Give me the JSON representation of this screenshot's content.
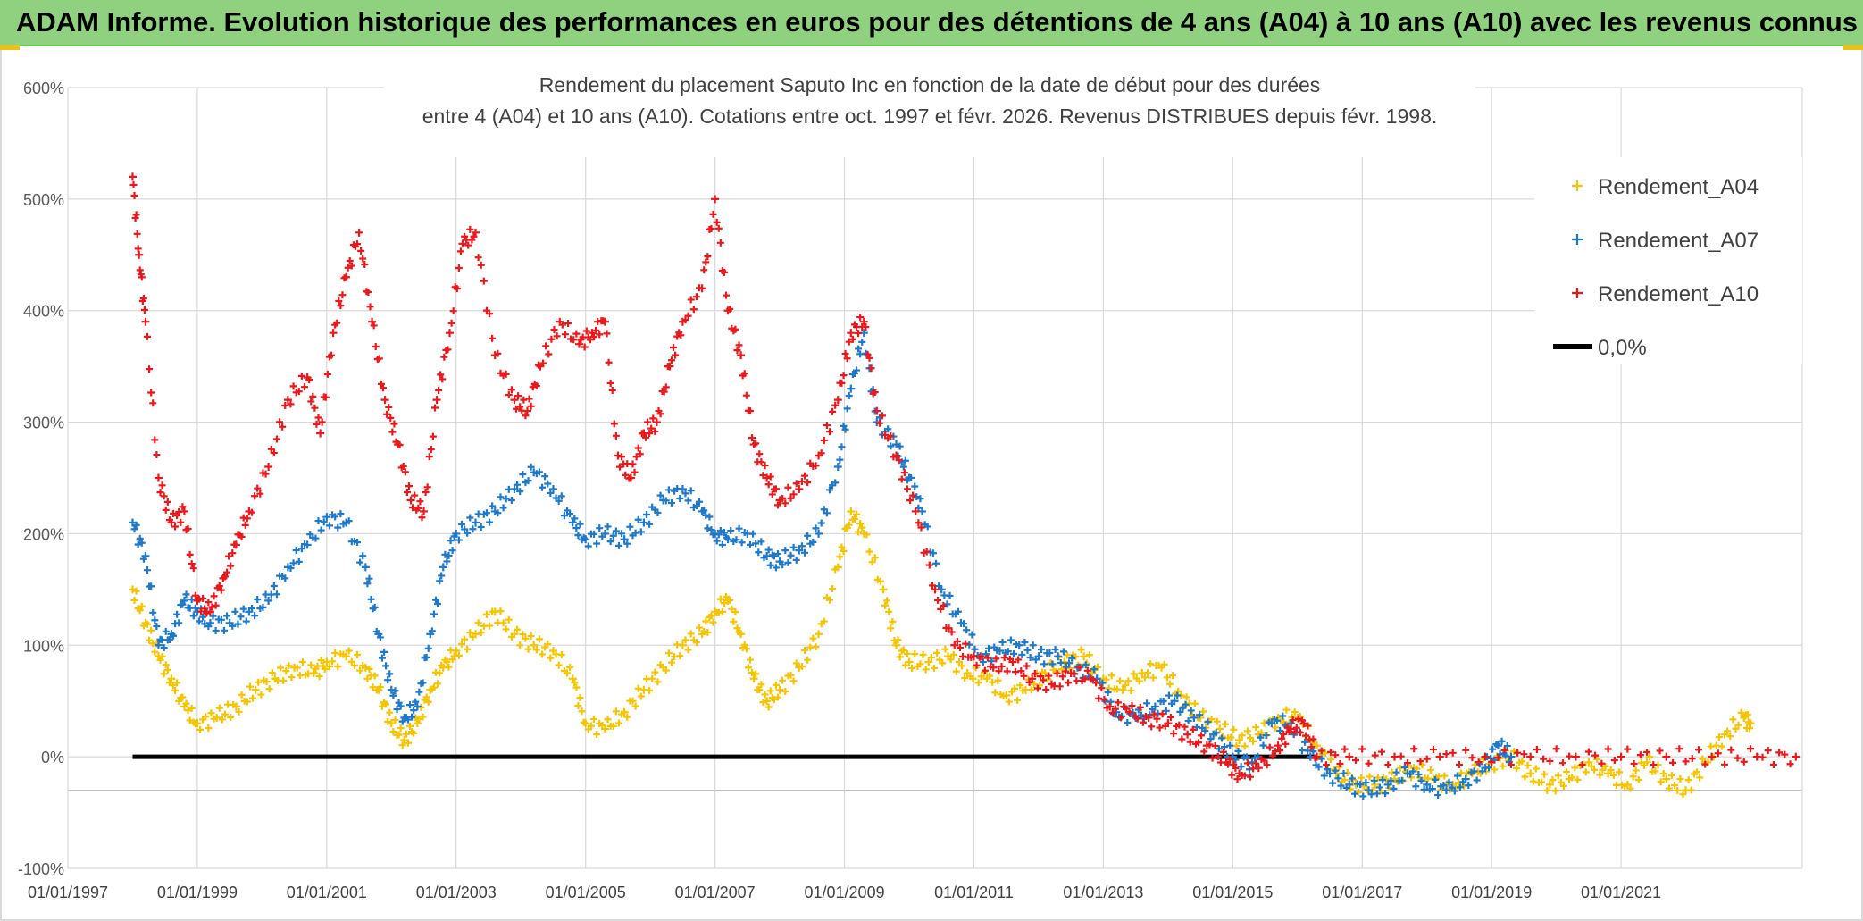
{
  "banner": {
    "title": "ADAM Informe. Evolution historique des performances en euros pour des détentions de 4 ans (A04) à 10 ans (A10) avec les revenus connus distribués"
  },
  "chart_data": {
    "type": "scatter",
    "title_line1": "Rendement du placement Saputo Inc en fonction de la date de début pour des durées",
    "title_line2": "entre 4 (A04) et 10 ans (A10). Cotations entre oct. 1997 et févr. 2026. Revenus DISTRIBUES depuis févr. 1998.",
    "x_range": [
      1997.0,
      2023.8
    ],
    "ylim": [
      -100,
      600
    ],
    "y_ticks": [
      -100,
      0,
      100,
      200,
      300,
      400,
      500,
      600
    ],
    "y_tick_labels": [
      "-100%",
      "0%",
      "100%",
      "200%",
      "300%",
      "400%",
      "500%",
      "600%"
    ],
    "x_ticks": [
      1997,
      1999,
      2001,
      2003,
      2005,
      2007,
      2009,
      2011,
      2013,
      2015,
      2017,
      2019,
      2021
    ],
    "x_tick_labels": [
      "01/01/1997",
      "01/01/1999",
      "01/01/2001",
      "01/01/2003",
      "01/01/2005",
      "01/01/2007",
      "01/01/2009",
      "01/01/2011",
      "01/01/2013",
      "01/01/2015",
      "01/01/2017",
      "01/01/2019",
      "01/01/2021"
    ],
    "grid": true,
    "legend_position": "top-right",
    "marker": "+",
    "series": [
      {
        "name": "Rendement_A04",
        "color": "#f5c400",
        "points": [
          [
            1998.0,
            150
          ],
          [
            1998.2,
            120
          ],
          [
            1998.4,
            90
          ],
          [
            1998.6,
            70
          ],
          [
            1998.8,
            45
          ],
          [
            1999.0,
            30
          ],
          [
            1999.3,
            35
          ],
          [
            1999.6,
            45
          ],
          [
            1999.9,
            60
          ],
          [
            2000.2,
            70
          ],
          [
            2000.5,
            80
          ],
          [
            2000.8,
            75
          ],
          [
            2001.0,
            85
          ],
          [
            2001.3,
            90
          ],
          [
            2001.6,
            80
          ],
          [
            2001.8,
            60
          ],
          [
            2002.0,
            30
          ],
          [
            2002.2,
            15
          ],
          [
            2002.4,
            30
          ],
          [
            2002.6,
            60
          ],
          [
            2002.8,
            80
          ],
          [
            2003.0,
            95
          ],
          [
            2003.3,
            110
          ],
          [
            2003.6,
            130
          ],
          [
            2003.9,
            110
          ],
          [
            2004.2,
            100
          ],
          [
            2004.5,
            95
          ],
          [
            2004.8,
            70
          ],
          [
            2005.0,
            30
          ],
          [
            2005.3,
            25
          ],
          [
            2005.6,
            40
          ],
          [
            2005.9,
            60
          ],
          [
            2006.2,
            80
          ],
          [
            2006.5,
            100
          ],
          [
            2006.8,
            110
          ],
          [
            2007.0,
            130
          ],
          [
            2007.2,
            140
          ],
          [
            2007.4,
            110
          ],
          [
            2007.6,
            70
          ],
          [
            2007.8,
            50
          ],
          [
            2008.0,
            60
          ],
          [
            2008.3,
            80
          ],
          [
            2008.6,
            110
          ],
          [
            2008.9,
            170
          ],
          [
            2009.1,
            220
          ],
          [
            2009.3,
            200
          ],
          [
            2009.6,
            150
          ],
          [
            2009.8,
            100
          ],
          [
            2010.0,
            85
          ],
          [
            2010.3,
            85
          ],
          [
            2010.6,
            90
          ],
          [
            2010.9,
            75
          ],
          [
            2011.2,
            70
          ],
          [
            2011.5,
            55
          ],
          [
            2011.8,
            60
          ],
          [
            2012.1,
            75
          ],
          [
            2012.4,
            85
          ],
          [
            2012.7,
            90
          ],
          [
            2013.0,
            70
          ],
          [
            2013.3,
            60
          ],
          [
            2013.6,
            75
          ],
          [
            2013.9,
            80
          ],
          [
            2014.2,
            55
          ],
          [
            2014.5,
            35
          ],
          [
            2014.8,
            25
          ],
          [
            2015.1,
            15
          ],
          [
            2015.4,
            20
          ],
          [
            2015.7,
            35
          ],
          [
            2016.0,
            35
          ],
          [
            2016.3,
            10
          ],
          [
            2016.6,
            -15
          ],
          [
            2016.9,
            -25
          ],
          [
            2017.2,
            -25
          ],
          [
            2017.5,
            -20
          ],
          [
            2017.8,
            -10
          ],
          [
            2018.1,
            -20
          ],
          [
            2018.4,
            -25
          ],
          [
            2018.7,
            -15
          ],
          [
            2019.0,
            -5
          ],
          [
            2019.3,
            0
          ],
          [
            2019.6,
            -15
          ],
          [
            2019.9,
            -25
          ],
          [
            2020.2,
            -20
          ],
          [
            2020.5,
            -5
          ],
          [
            2020.8,
            -15
          ],
          [
            2021.1,
            -25
          ],
          [
            2021.4,
            -5
          ],
          [
            2021.7,
            -20
          ],
          [
            2022.0,
            -30
          ],
          [
            2022.3,
            -5
          ],
          [
            2022.6,
            20
          ],
          [
            2022.9,
            35
          ],
          [
            2023.0,
            30
          ]
        ]
      },
      {
        "name": "Rendement_A07",
        "color": "#1f78c8",
        "points": [
          [
            1998.0,
            210
          ],
          [
            1998.2,
            180
          ],
          [
            1998.4,
            100
          ],
          [
            1998.6,
            110
          ],
          [
            1998.8,
            140
          ],
          [
            1999.0,
            130
          ],
          [
            1999.2,
            120
          ],
          [
            1999.5,
            120
          ],
          [
            1999.8,
            130
          ],
          [
            2000.1,
            140
          ],
          [
            2000.4,
            170
          ],
          [
            2000.7,
            190
          ],
          [
            2001.0,
            215
          ],
          [
            2001.3,
            210
          ],
          [
            2001.6,
            170
          ],
          [
            2001.8,
            110
          ],
          [
            2002.0,
            60
          ],
          [
            2002.2,
            35
          ],
          [
            2002.4,
            45
          ],
          [
            2002.6,
            110
          ],
          [
            2002.8,
            170
          ],
          [
            2003.0,
            200
          ],
          [
            2003.3,
            210
          ],
          [
            2003.6,
            220
          ],
          [
            2003.9,
            240
          ],
          [
            2004.2,
            255
          ],
          [
            2004.5,
            240
          ],
          [
            2004.8,
            210
          ],
          [
            2005.0,
            195
          ],
          [
            2005.3,
            200
          ],
          [
            2005.6,
            195
          ],
          [
            2005.9,
            210
          ],
          [
            2006.2,
            230
          ],
          [
            2006.5,
            240
          ],
          [
            2006.8,
            220
          ],
          [
            2007.0,
            200
          ],
          [
            2007.2,
            195
          ],
          [
            2007.5,
            200
          ],
          [
            2007.8,
            180
          ],
          [
            2008.0,
            175
          ],
          [
            2008.3,
            185
          ],
          [
            2008.6,
            200
          ],
          [
            2008.9,
            260
          ],
          [
            2009.1,
            330
          ],
          [
            2009.3,
            380
          ],
          [
            2009.5,
            300
          ],
          [
            2009.8,
            280
          ],
          [
            2010.0,
            250
          ],
          [
            2010.2,
            220
          ],
          [
            2010.5,
            150
          ],
          [
            2010.8,
            120
          ],
          [
            2011.1,
            90
          ],
          [
            2011.4,
            95
          ],
          [
            2011.7,
            100
          ],
          [
            2012.0,
            90
          ],
          [
            2012.3,
            90
          ],
          [
            2012.6,
            80
          ],
          [
            2012.9,
            70
          ],
          [
            2013.2,
            40
          ],
          [
            2013.5,
            35
          ],
          [
            2013.8,
            45
          ],
          [
            2014.1,
            50
          ],
          [
            2014.4,
            35
          ],
          [
            2014.7,
            20
          ],
          [
            2015.0,
            0
          ],
          [
            2015.3,
            -5
          ],
          [
            2015.6,
            30
          ],
          [
            2015.9,
            30
          ],
          [
            2016.2,
            0
          ],
          [
            2016.5,
            -15
          ],
          [
            2016.8,
            -25
          ],
          [
            2017.1,
            -30
          ],
          [
            2017.4,
            -25
          ],
          [
            2017.7,
            -15
          ],
          [
            2018.0,
            -25
          ],
          [
            2018.3,
            -30
          ],
          [
            2018.6,
            -20
          ],
          [
            2018.9,
            -10
          ],
          [
            2019.1,
            10
          ],
          [
            2019.3,
            0
          ]
        ]
      },
      {
        "name": "Rendement_A10",
        "color": "#e8191d",
        "points": [
          [
            1998.0,
            520
          ],
          [
            1998.1,
            450
          ],
          [
            1998.2,
            390
          ],
          [
            1998.4,
            250
          ],
          [
            1998.6,
            210
          ],
          [
            1998.8,
            220
          ],
          [
            1999.0,
            140
          ],
          [
            1999.2,
            130
          ],
          [
            1999.4,
            160
          ],
          [
            1999.6,
            190
          ],
          [
            1999.8,
            220
          ],
          [
            2000.1,
            260
          ],
          [
            2000.4,
            320
          ],
          [
            2000.7,
            340
          ],
          [
            2000.9,
            290
          ],
          [
            2001.1,
            380
          ],
          [
            2001.3,
            430
          ],
          [
            2001.5,
            470
          ],
          [
            2001.7,
            390
          ],
          [
            2001.9,
            320
          ],
          [
            2002.1,
            280
          ],
          [
            2002.3,
            230
          ],
          [
            2002.5,
            220
          ],
          [
            2002.7,
            320
          ],
          [
            2002.9,
            380
          ],
          [
            2003.1,
            460
          ],
          [
            2003.3,
            470
          ],
          [
            2003.6,
            360
          ],
          [
            2003.9,
            320
          ],
          [
            2004.1,
            310
          ],
          [
            2004.3,
            350
          ],
          [
            2004.6,
            390
          ],
          [
            2004.9,
            370
          ],
          [
            2005.1,
            380
          ],
          [
            2005.3,
            390
          ],
          [
            2005.5,
            270
          ],
          [
            2005.7,
            250
          ],
          [
            2005.9,
            290
          ],
          [
            2006.1,
            300
          ],
          [
            2006.3,
            350
          ],
          [
            2006.5,
            390
          ],
          [
            2006.8,
            420
          ],
          [
            2007.0,
            500
          ],
          [
            2007.2,
            400
          ],
          [
            2007.4,
            360
          ],
          [
            2007.6,
            280
          ],
          [
            2007.8,
            250
          ],
          [
            2008.0,
            230
          ],
          [
            2008.3,
            240
          ],
          [
            2008.6,
            270
          ],
          [
            2008.9,
            320
          ],
          [
            2009.1,
            380
          ],
          [
            2009.3,
            390
          ],
          [
            2009.5,
            310
          ],
          [
            2009.8,
            270
          ],
          [
            2010.1,
            220
          ],
          [
            2010.4,
            150
          ],
          [
            2010.7,
            100
          ],
          [
            2011.0,
            90
          ],
          [
            2011.3,
            80
          ],
          [
            2011.6,
            85
          ],
          [
            2011.9,
            70
          ],
          [
            2012.2,
            65
          ],
          [
            2012.5,
            75
          ],
          [
            2012.8,
            70
          ],
          [
            2013.1,
            45
          ],
          [
            2013.4,
            40
          ],
          [
            2013.7,
            35
          ],
          [
            2014.0,
            30
          ],
          [
            2014.3,
            20
          ],
          [
            2014.6,
            10
          ],
          [
            2014.9,
            -5
          ],
          [
            2015.1,
            -15
          ],
          [
            2015.4,
            -10
          ],
          [
            2015.7,
            10
          ],
          [
            2015.9,
            25
          ],
          [
            2016.1,
            30
          ],
          [
            2016.3,
            0
          ],
          [
            2016.8,
            0
          ],
          [
            2017.5,
            0
          ],
          [
            2018.2,
            0
          ],
          [
            2018.9,
            0
          ],
          [
            2019.6,
            0
          ],
          [
            2020.3,
            0
          ],
          [
            2021.0,
            0
          ],
          [
            2021.7,
            0
          ],
          [
            2022.4,
            0
          ],
          [
            2023.1,
            0
          ],
          [
            2023.7,
            0
          ]
        ]
      }
    ],
    "reference_line": {
      "name": "0,0%",
      "color": "#000000",
      "y": 0,
      "x_start": 1998.0,
      "x_end": 2016.3
    }
  }
}
